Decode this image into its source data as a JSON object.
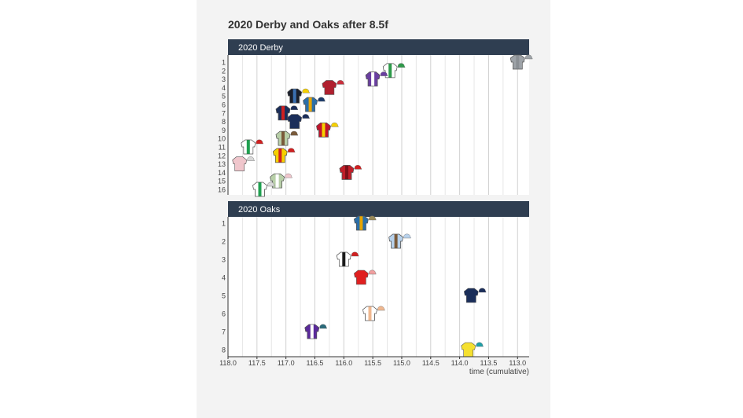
{
  "colors": {
    "panel_header": "#2f3e51",
    "header_text": "#ffffff",
    "grid": "#d3d3d3",
    "axis": "#333333",
    "tick_text": "#444444",
    "panel_bg": "#ffffff"
  },
  "chart_data": {
    "type": "scatter",
    "title": "2020 Derby and Oaks after 8.5f",
    "xlabel": "time (cumulative)",
    "x_reversed": true,
    "xlim": [
      118.0,
      112.8
    ],
    "x_ticks": [
      "118.0",
      "117.5",
      "117.0",
      "116.5",
      "116.0",
      "115.5",
      "115.0",
      "114.5",
      "114.0",
      "113.5",
      "113.0"
    ],
    "x_tick_values": [
      118.0,
      117.5,
      117.0,
      116.5,
      116.0,
      115.5,
      115.0,
      114.5,
      114.0,
      113.5,
      113.0
    ],
    "panels": [
      {
        "label": "2020 Derby",
        "y_ticks": [
          "1",
          "2",
          "3",
          "4",
          "5",
          "6",
          "7",
          "8",
          "9",
          "10",
          "11",
          "12",
          "13",
          "14",
          "15",
          "16"
        ],
        "points": [
          {
            "position": 1,
            "time": 113.0,
            "body": "#9ea3a8",
            "accent": "#8a8f94",
            "cap": "#9ea3a8"
          },
          {
            "position": 2,
            "time": 115.2,
            "body": "#ffffff",
            "accent": "#2e9a4a",
            "cap": "#2e9a4a"
          },
          {
            "position": 3,
            "time": 115.5,
            "body": "#6a3fa0",
            "accent": "#ffffff",
            "cap": "#6a3fa0"
          },
          {
            "position": 4,
            "time": 116.25,
            "body": "#b0202f",
            "accent": "#b0202f",
            "cap": "#c9303c"
          },
          {
            "position": 5,
            "time": 116.85,
            "body": "#1a1f2b",
            "accent": "#3a6fb0",
            "cap": "#f5d000"
          },
          {
            "position": 6,
            "time": 116.58,
            "body": "#2c6fa8",
            "accent": "#e8a500",
            "cap": "#1a3a6a"
          },
          {
            "position": 7,
            "time": 117.05,
            "body": "#1b2e5a",
            "accent": "#d02020",
            "cap": "#1b2e5a"
          },
          {
            "position": 8,
            "time": 116.85,
            "body": "#1b2e5a",
            "accent": "#1b2e5a",
            "cap": "#1b2e5a"
          },
          {
            "position": 9,
            "time": 116.35,
            "body": "#c0142c",
            "accent": "#f5d000",
            "cap": "#f5d000"
          },
          {
            "position": 10,
            "time": 117.05,
            "body": "#b8cfa8",
            "accent": "#7a5a3a",
            "cap": "#7a5a3a"
          },
          {
            "position": 11,
            "time": 117.65,
            "body": "#ffffff",
            "accent": "#20a050",
            "cap": "#d02020"
          },
          {
            "position": 12,
            "time": 117.1,
            "body": "#f5d000",
            "accent": "#d02020",
            "cap": "#d02020"
          },
          {
            "position": 13,
            "time": 117.8,
            "body": "#f0c6cc",
            "accent": "#f0c6cc",
            "cap": "#d8d8d8"
          },
          {
            "position": 14,
            "time": 115.95,
            "body": "#c01e28",
            "accent": "#7a1018",
            "cap": "#d02020"
          },
          {
            "position": 15,
            "time": 117.15,
            "body": "#b8cfa8",
            "accent": "#ffffff",
            "cap": "#f0c6cc"
          },
          {
            "position": 16,
            "time": 117.45,
            "body": "#ffffff",
            "accent": "#20a050",
            "cap": "#d8d8d8"
          }
        ]
      },
      {
        "label": "2020 Oaks",
        "y_ticks": [
          "1",
          "2",
          "3",
          "4",
          "5",
          "6",
          "7",
          "8"
        ],
        "points": [
          {
            "position": 1,
            "time": 115.7,
            "body": "#2c6fa8",
            "accent": "#e8a500",
            "cap": "#9a8a5a"
          },
          {
            "position": 2,
            "time": 115.1,
            "body": "#b8d2ec",
            "accent": "#7a5a3a",
            "cap": "#b8d2ec"
          },
          {
            "position": 3,
            "time": 116.0,
            "body": "#ffffff",
            "accent": "#1a1a1a",
            "cap": "#d02020"
          },
          {
            "position": 4,
            "time": 115.7,
            "body": "#e02020",
            "accent": "#e02020",
            "cap": "#f0a0a0"
          },
          {
            "position": 5,
            "time": 113.8,
            "body": "#1b2e5a",
            "accent": "#1b2e5a",
            "cap": "#1b2e5a"
          },
          {
            "position": 6,
            "time": 115.55,
            "body": "#ffffff",
            "accent": "#f0b890",
            "cap": "#f0b890"
          },
          {
            "position": 7,
            "time": 116.55,
            "body": "#5a2a9a",
            "accent": "#ffffff",
            "cap": "#2a6a7a"
          },
          {
            "position": 8,
            "time": 113.85,
            "body": "#f5e030",
            "accent": "#f5e030",
            "cap": "#20a0a8"
          }
        ]
      }
    ]
  }
}
